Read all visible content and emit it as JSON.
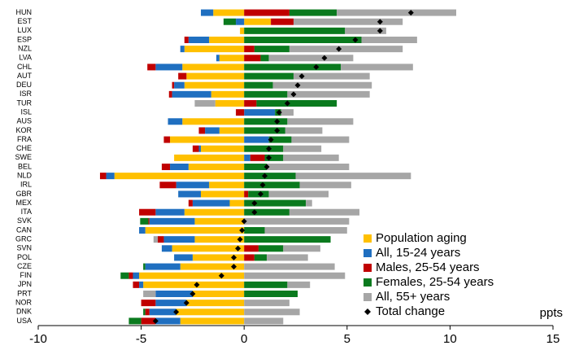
{
  "chart_data": {
    "type": "bar",
    "orientation": "horizontal",
    "stacked": true,
    "categories": [
      "HUN",
      "EST",
      "LUX",
      "ESP",
      "NZL",
      "LVA",
      "CHL",
      "AUT",
      "DEU",
      "ISR",
      "TUR",
      "ISL",
      "AUS",
      "KOR",
      "FRA",
      "CHE",
      "SWE",
      "BEL",
      "NLD",
      "IRL",
      "GBR",
      "MEX",
      "ITA",
      "SVK",
      "CAN",
      "GRC",
      "SVN",
      "POL",
      "CZE",
      "FIN",
      "JPN",
      "PRT",
      "NOR",
      "DNK",
      "USA"
    ],
    "series": [
      {
        "name": "Population aging",
        "color": "#FFC000",
        "values": [
          -1.5,
          1.3,
          -0.2,
          -1.7,
          -2.9,
          -1.2,
          -3.0,
          -2.8,
          -2.9,
          -1.6,
          -1.4,
          0,
          -3.0,
          -1.2,
          -3.6,
          -2.1,
          -3.4,
          -2.7,
          -6.3,
          -1.7,
          -2.1,
          -0.7,
          -2.9,
          -2.4,
          -4.8,
          -2.4,
          -3.5,
          -2.5,
          -3.1,
          -5.1,
          -4.9,
          -2.5,
          -2.8,
          -3.3,
          -3.1
        ]
      },
      {
        "name": "All, 15-24 years",
        "color": "#1F6FC0",
        "values": [
          -0.6,
          -0.4,
          0,
          -1.0,
          -0.2,
          -0.15,
          -1.3,
          0,
          -0.5,
          -1.9,
          0,
          1.5,
          -0.7,
          -0.7,
          1.2,
          -0.1,
          0.3,
          -0.9,
          -0.4,
          -1.6,
          -1.1,
          -1.8,
          -1.4,
          -2.2,
          -0.3,
          -1.5,
          -0.5,
          -0.9,
          -1.7,
          -0.3,
          -0.2,
          -1.8,
          -1.5,
          -1.3,
          -1.2
        ]
      },
      {
        "name": "Males, 25-54 years",
        "color": "#C00000",
        "values": [
          2.2,
          1.1,
          0,
          -0.2,
          0.5,
          0.8,
          -0.4,
          -0.4,
          -0.1,
          -0.15,
          0.6,
          -0.4,
          0,
          -0.3,
          -0.3,
          -0.3,
          0.7,
          -0.4,
          -0.3,
          -0.8,
          0.2,
          -0.2,
          -0.8,
          -0.05,
          0,
          -0.3,
          0.7,
          0.5,
          0,
          -0.2,
          -0.3,
          0,
          -0.7,
          -0.2,
          -0.7
        ]
      },
      {
        "name": "Females, 25-54 years",
        "color": "#0A7A1E",
        "values": [
          2.3,
          -0.6,
          4.9,
          5.7,
          1.7,
          0.4,
          4.7,
          2.4,
          1.4,
          2.1,
          3.9,
          0.3,
          2.1,
          2.0,
          1.1,
          1.9,
          0.9,
          1.1,
          2.5,
          2.7,
          1.0,
          3.0,
          2.2,
          -0.4,
          1.0,
          4.2,
          1.2,
          0.6,
          -0.1,
          -0.4,
          2.1,
          2.6,
          0,
          -0.1,
          -0.6
        ]
      },
      {
        "name": "All, 55+ years",
        "color": "#A6A6A6",
        "values": [
          5.8,
          5.3,
          2.0,
          2.7,
          5.5,
          4.1,
          3.5,
          3.7,
          4.8,
          4.0,
          -1.0,
          0.6,
          3.2,
          1.8,
          2.8,
          1.85,
          2.7,
          4.0,
          5.6,
          2.5,
          2.9,
          0.3,
          3.4,
          5.1,
          4.0,
          -0.2,
          1.8,
          2.0,
          4.4,
          4.9,
          1.1,
          -0.6,
          2.2,
          2.7,
          1.9
        ]
      },
      {
        "name": "Total change",
        "type": "scatter",
        "color": "#000000",
        "values": [
          8.1,
          6.6,
          6.6,
          5.4,
          4.6,
          3.9,
          3.5,
          2.8,
          2.6,
          2.4,
          2.1,
          1.7,
          1.6,
          1.6,
          1.3,
          1.2,
          1.2,
          1.1,
          1.0,
          0.9,
          0.8,
          0.5,
          0.5,
          0,
          -0.1,
          -0.2,
          -0.3,
          -0.5,
          -0.5,
          -1.1,
          -2.3,
          -2.5,
          -2.8,
          -3.3,
          -4.3
        ]
      }
    ],
    "xlim": [
      -10,
      15
    ],
    "xticks": [
      -10,
      -5,
      0,
      5,
      10,
      15
    ],
    "xlabel": "ppts",
    "legend": "lower right"
  }
}
